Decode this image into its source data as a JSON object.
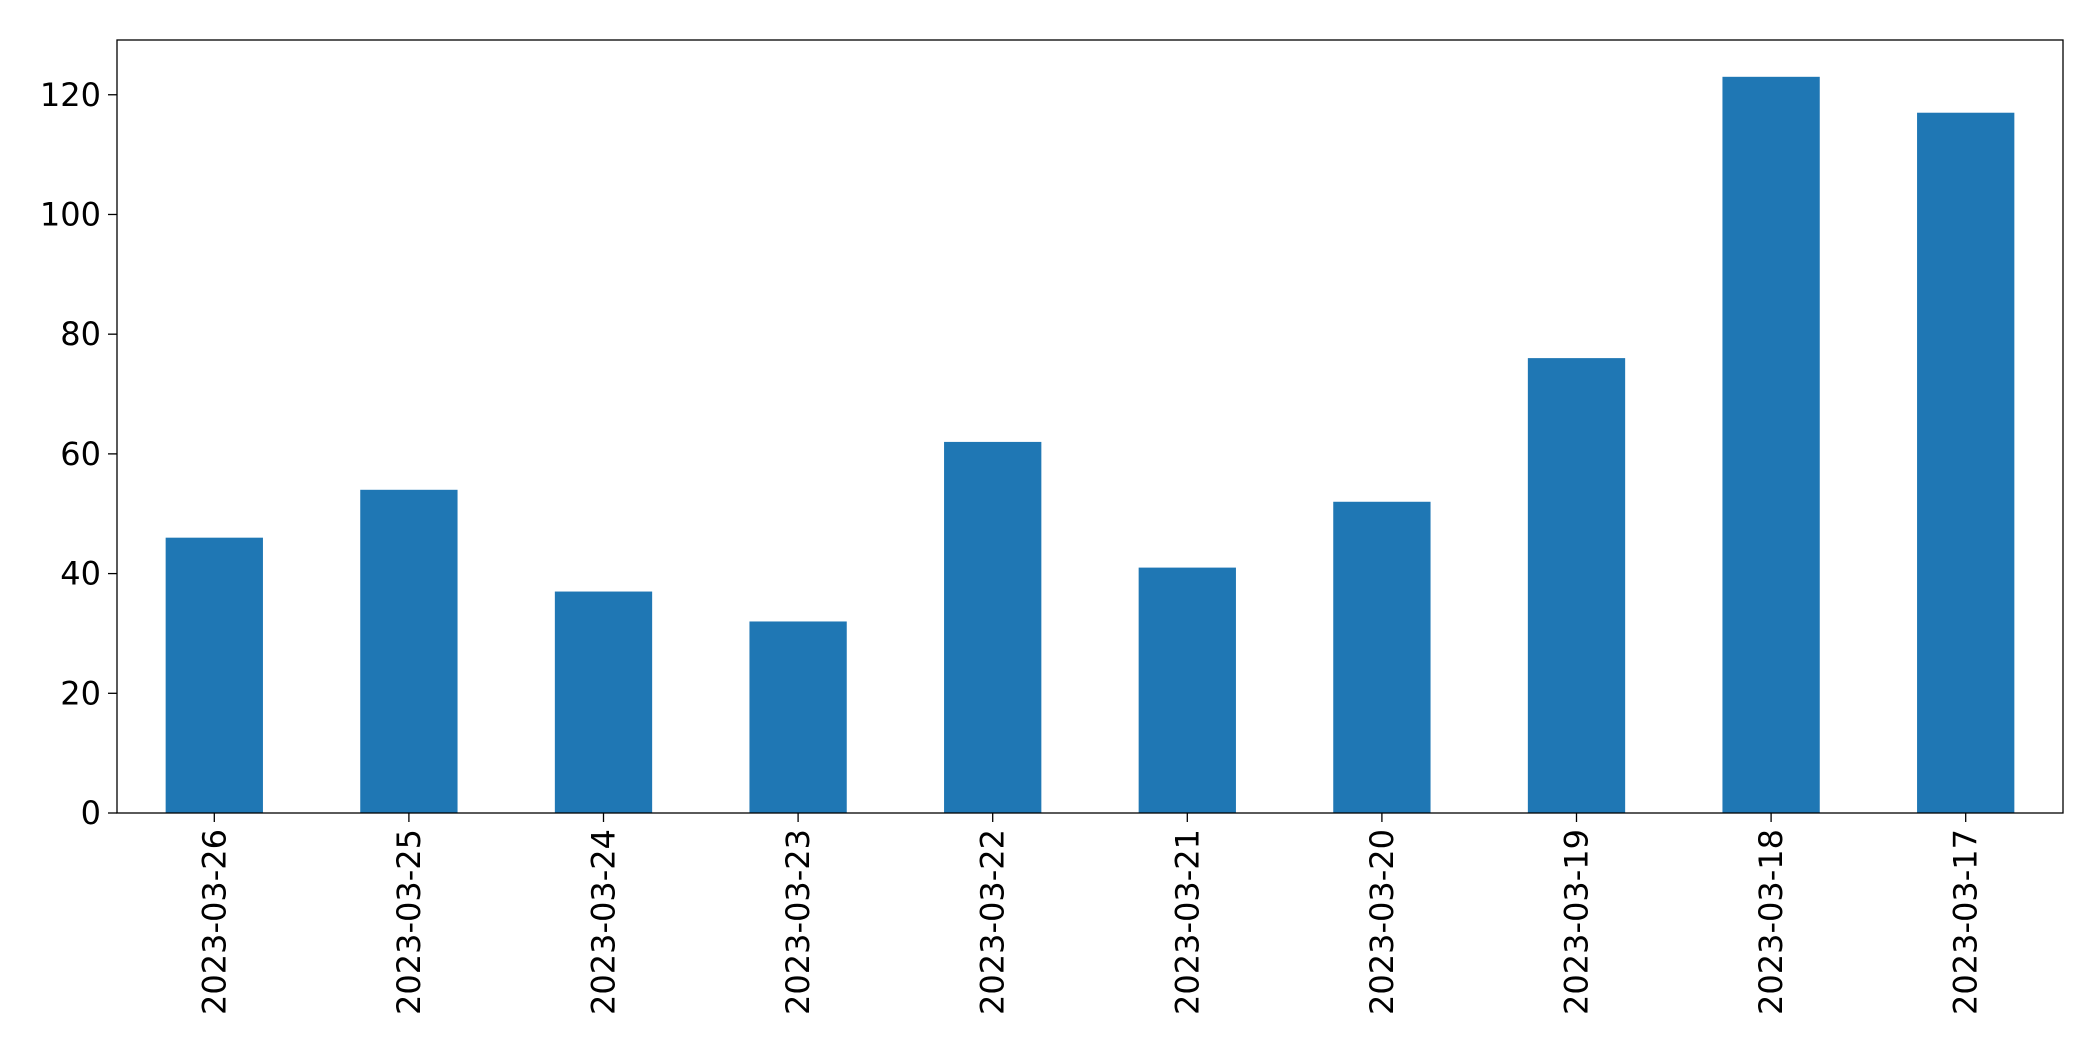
{
  "chart_data": {
    "type": "bar",
    "categories": [
      "2023-03-26",
      "2023-03-25",
      "2023-03-24",
      "2023-03-23",
      "2023-03-22",
      "2023-03-21",
      "2023-03-20",
      "2023-03-19",
      "2023-03-18",
      "2023-03-17"
    ],
    "values": [
      46,
      54,
      37,
      32,
      62,
      41,
      52,
      76,
      123,
      117
    ],
    "color": "#1f77b4",
    "ylim": [
      0,
      129.15
    ],
    "yticks": [
      0,
      20,
      40,
      60,
      80,
      100,
      120
    ],
    "grid": false
  }
}
